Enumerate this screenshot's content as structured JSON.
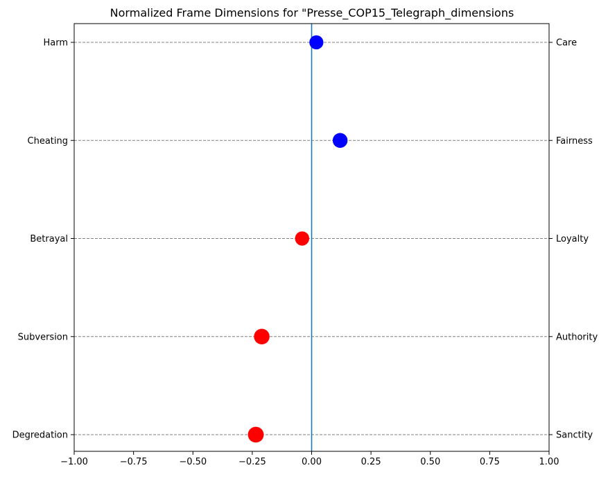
{
  "chart_data": {
    "type": "scatter",
    "title": "Normalized Frame Dimensions for \"Presse_COP15_Telegraph_dimensions",
    "xlabel": "",
    "ylabel": "",
    "xlim": [
      -1.0,
      1.0
    ],
    "x_ticks": [
      -1.0,
      -0.75,
      -0.5,
      -0.25,
      0.0,
      0.25,
      0.5,
      0.75,
      1.0
    ],
    "x_tick_labels": [
      "−1.00",
      "−0.75",
      "−0.50",
      "−0.25",
      "0.00",
      "0.25",
      "0.50",
      "0.75",
      "1.00"
    ],
    "zero_line": 0.0,
    "grid": "horizontal dashed at each dimension",
    "colors": {
      "positive": "#0000ff",
      "negative": "#ff0000",
      "zero_line": "#1f77b4",
      "grid": "#808080"
    },
    "dimensions": [
      {
        "left_label": "Harm",
        "right_label": "Care",
        "value": 0.02
      },
      {
        "left_label": "Cheating",
        "right_label": "Fairness",
        "value": 0.12
      },
      {
        "left_label": "Betrayal",
        "right_label": "Loyalty",
        "value": -0.04
      },
      {
        "left_label": "Subversion",
        "right_label": "Authority",
        "value": -0.21
      },
      {
        "left_label": "Degredation",
        "right_label": "Sanctity",
        "value": -0.235
      }
    ]
  }
}
